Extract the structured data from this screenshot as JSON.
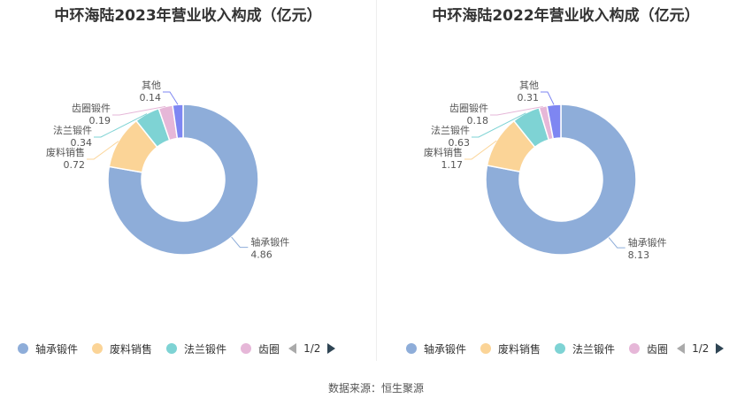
{
  "chart_data": [
    {
      "type": "pie",
      "title": "中环海陆2023年营业收入构成（亿元）",
      "categories": [
        "轴承锻件",
        "废料销售",
        "法兰锻件",
        "齿圈锻件",
        "其他"
      ],
      "values": [
        4.86,
        0.72,
        0.34,
        0.19,
        0.14
      ],
      "colors": [
        "#8eadd9",
        "#fbd497",
        "#7ed3d4",
        "#e6b7d8",
        "#7e86f2"
      ],
      "legend": {
        "items": [
          "轴承锻件",
          "废料销售",
          "法兰锻件",
          "齿圈"
        ],
        "page": "1/2",
        "placement": "bottom"
      }
    },
    {
      "type": "pie",
      "title": "中环海陆2022年营业收入构成（亿元）",
      "categories": [
        "轴承锻件",
        "废料销售",
        "法兰锻件",
        "齿圈锻件",
        "其他"
      ],
      "values": [
        8.13,
        1.17,
        0.63,
        0.18,
        0.31
      ],
      "colors": [
        "#8eadd9",
        "#fbd497",
        "#7ed3d4",
        "#e6b7d8",
        "#7e86f2"
      ],
      "legend": {
        "items": [
          "轴承锻件",
          "废料销售",
          "法兰锻件",
          "齿圈"
        ],
        "page": "1/2",
        "placement": "bottom"
      }
    }
  ],
  "source": "数据来源：恒生聚源"
}
